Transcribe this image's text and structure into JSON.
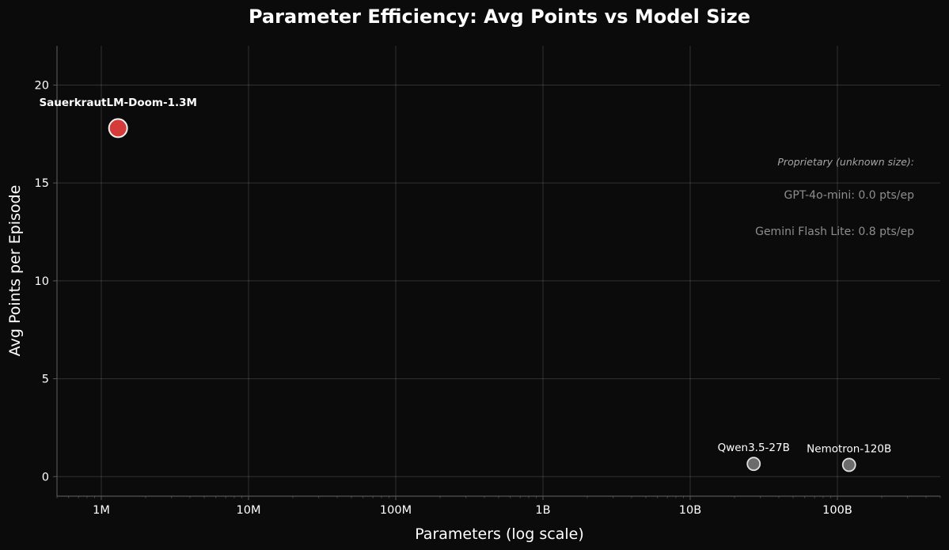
{
  "chart_data": {
    "type": "scatter",
    "title": "Parameter Efficiency: Avg Points vs Model Size",
    "xlabel": "Parameters (log scale)",
    "ylabel": "Avg Points per Episode",
    "x_scale": "log",
    "xlim": [
      500000,
      500000000000
    ],
    "ylim": [
      -1,
      22
    ],
    "grid": true,
    "x_ticks": [
      {
        "value": 1000000,
        "label": "1M"
      },
      {
        "value": 10000000,
        "label": "10M"
      },
      {
        "value": 100000000,
        "label": "100M"
      },
      {
        "value": 1000000000,
        "label": "1B"
      },
      {
        "value": 10000000000,
        "label": "10B"
      },
      {
        "value": 100000000000,
        "label": "100B"
      }
    ],
    "y_ticks": [
      {
        "value": 0,
        "label": "0"
      },
      {
        "value": 5,
        "label": "5"
      },
      {
        "value": 10,
        "label": "10"
      },
      {
        "value": 15,
        "label": "15"
      },
      {
        "value": 20,
        "label": "20"
      }
    ],
    "points": [
      {
        "label": "SauerkrautLM-Doom-1.3M",
        "x": 1300000,
        "y": 17.8,
        "color": "#d63b3b",
        "highlight": true
      },
      {
        "label": "Qwen3.5-27B",
        "x": 27000000000,
        "y": 0.65,
        "color": "#6b6b6b",
        "highlight": false
      },
      {
        "label": "Nemotron-120B",
        "x": 120000000000,
        "y": 0.6,
        "color": "#6b6b6b",
        "highlight": false
      }
    ],
    "annotations": {
      "header": "Proprietary (unknown size):",
      "items": [
        "GPT-4o-mini: 0.0 pts/ep",
        "Gemini Flash Lite: 0.8 pts/ep"
      ]
    }
  }
}
